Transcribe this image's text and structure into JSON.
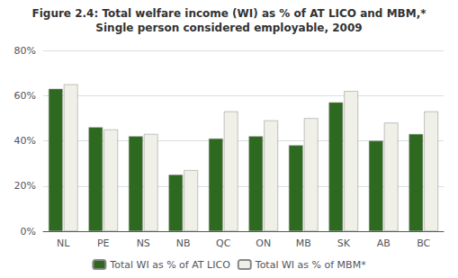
{
  "chart_data": {
    "type": "bar",
    "title": "Figure 2.4: Total welfare income (WI) as % of AT LICO and MBM,*",
    "subtitle": "Single person considered employable, 2009",
    "categories": [
      "NL",
      "PE",
      "NS",
      "NB",
      "QC",
      "ON",
      "MB",
      "SK",
      "AB",
      "BC"
    ],
    "series": [
      {
        "name": "Total WI as % of AT LICO",
        "color": "#2d6a1f",
        "values": [
          63,
          46,
          42,
          25,
          41,
          42,
          38,
          57,
          40,
          43
        ]
      },
      {
        "name": "Total WI as % of MBM*",
        "color": "#f0f0e8",
        "values": [
          65,
          45,
          43,
          27,
          53,
          49,
          50,
          62,
          48,
          53
        ]
      }
    ],
    "ylim": [
      0,
      80
    ],
    "yticks": [
      {
        "value": 0,
        "label": "0%"
      },
      {
        "value": 20,
        "label": "20%"
      },
      {
        "value": 40,
        "label": "40%"
      },
      {
        "value": 60,
        "label": "60%"
      },
      {
        "value": 80,
        "label": "80%"
      }
    ],
    "grid": true,
    "legend": "bottom"
  }
}
